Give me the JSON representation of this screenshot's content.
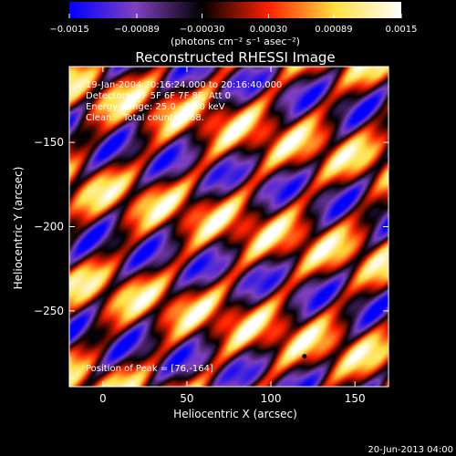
{
  "chart_data": {
    "type": "heatmap",
    "title": "Reconstructed RHESSI Image",
    "xlabel": "Heliocentric X (arcsec)",
    "ylabel": "Heliocentric Y (arcsec)",
    "xlim": [
      -20,
      170
    ],
    "ylim": [
      -295,
      -105
    ],
    "xticks": [
      0,
      50,
      100,
      150
    ],
    "yticks": [
      -150,
      -200,
      -250
    ],
    "xtick_labels": [
      "0",
      "50",
      "100",
      "150"
    ],
    "ytick_labels": [
      "−150",
      "−200",
      "−250"
    ],
    "colorbar": {
      "range": [
        -0.0015,
        0.0015
      ],
      "ticks": [
        -0.0015,
        -0.00089,
        -0.0003,
        0.0003,
        0.00089,
        0.0015
      ],
      "tick_labels": [
        "−0.0015",
        "−0.00089",
        "−0.00030",
        "0.00030",
        "0.00089",
        "0.0015"
      ],
      "unit_label": "(photons cm⁻² s⁻¹ asec⁻²)"
    },
    "annotations": [
      "19-Jan-2004 20:16:24.000 to 20:16:40.000",
      "Detectors: 4F 5F 6F 7F 8F, Att 0",
      "Energy Range: 25.0 - 50.0 keV",
      "Clean    Total counts: 268."
    ],
    "peak_label": "Position of Peak = [76,-164]",
    "peak_marker": [
      120,
      -277
    ],
    "footer_date": "20-Jun-2013 04:00",
    "colormap": [
      "#0000ff",
      "#8040c0",
      "#000000",
      "#ff2000",
      "#ffe040",
      "#ffffff"
    ]
  }
}
